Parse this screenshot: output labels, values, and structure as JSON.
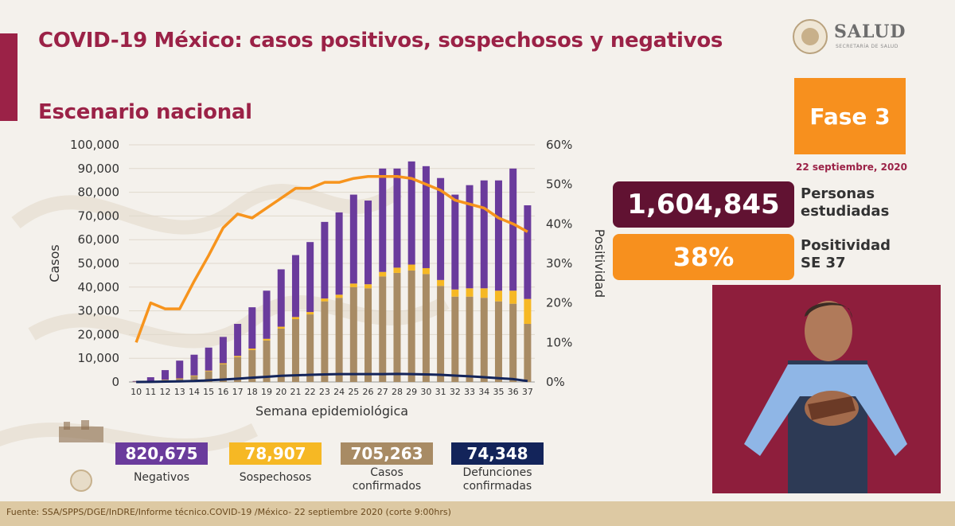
{
  "header": {
    "title": "COVID-19 México: casos positivos, sospechosos y negativos",
    "subtitle": "Escenario nacional"
  },
  "logo": {
    "name": "SALUD",
    "sub": "SECRETARÍA DE SALUD"
  },
  "phase": {
    "label": "Fase 3",
    "date": "22 septiembre, 2020"
  },
  "stats": {
    "personas_value": "1,604,845",
    "personas_label_1": "Personas",
    "personas_label_2": "estudiadas",
    "positividad_value": "38%",
    "positividad_label_1": "Positividad",
    "positividad_label_2": "SE 37"
  },
  "totals": [
    {
      "value": "820,675",
      "label_1": "Negativos",
      "label_2": "",
      "color": "#6a3b9c"
    },
    {
      "value": "78,907",
      "label_1": "Sospechosos",
      "label_2": "",
      "color": "#f6b824"
    },
    {
      "value": "705,263",
      "label_1": "Casos",
      "label_2": "confirmados",
      "color": "#a88b64"
    },
    {
      "value": "74,348",
      "label_1": "Defunciones",
      "label_2": "confirmadas",
      "color": "#13245a"
    }
  ],
  "footer": {
    "source": "Fuente: SSA/SPPS/DGE/InDRE/Informe técnico.COVID-19 /México- 22 septiembre 2020 (corte 9:00hrs)"
  },
  "colors": {
    "negativos": "#6a3b9c",
    "sospechosos": "#f6b824",
    "confirmados": "#a88b64",
    "defunciones": "#13245a",
    "positividad": "#f7941d",
    "accent": "#9b2247"
  },
  "chart_data": {
    "type": "bar",
    "stacked": true,
    "xlabel": "Semana epidemiológica",
    "ylabel": "Casos",
    "y2label": "Positividad",
    "ylim": [
      0,
      100000
    ],
    "y2lim": [
      0,
      60
    ],
    "yticks": [
      "0",
      "10,000",
      "20,000",
      "30,000",
      "40,000",
      "50,000",
      "60,000",
      "70,000",
      "80,000",
      "90,000",
      "100,000"
    ],
    "y2ticks": [
      "0%",
      "10%",
      "20%",
      "30%",
      "40%",
      "50%",
      "60%"
    ],
    "categories": [
      "10",
      "11",
      "12",
      "13",
      "14",
      "15",
      "16",
      "17",
      "18",
      "19",
      "20",
      "21",
      "22",
      "23",
      "24",
      "25",
      "26",
      "27",
      "28",
      "29",
      "30",
      "31",
      "32",
      "33",
      "34",
      "35",
      "36",
      "37"
    ],
    "series": [
      {
        "name": "Casos confirmados",
        "values": [
          100,
          300,
          800,
          1300,
          2500,
          4500,
          7500,
          10500,
          13500,
          17500,
          22500,
          26500,
          28500,
          34000,
          35500,
          40000,
          39500,
          44500,
          46000,
          47000,
          45500,
          40500,
          36000,
          36000,
          35500,
          34000,
          33000,
          24500
        ]
      },
      {
        "name": "Sospechosos",
        "values": [
          50,
          100,
          150,
          200,
          250,
          300,
          400,
          500,
          600,
          700,
          800,
          900,
          1000,
          1200,
          1300,
          1500,
          1700,
          1900,
          2200,
          2500,
          2500,
          2500,
          3000,
          3500,
          4000,
          4500,
          5500,
          10500
        ]
      },
      {
        "name": "Negativos",
        "values": [
          250,
          1600,
          4050,
          7500,
          8750,
          9700,
          11100,
          13500,
          17400,
          20300,
          24200,
          26100,
          29500,
          32300,
          34700,
          37500,
          35300,
          43600,
          41800,
          43500,
          43000,
          43000,
          40000,
          43500,
          45500,
          46500,
          51500,
          39500
        ]
      },
      {
        "name": "Defunciones",
        "type": "line",
        "values": [
          20,
          60,
          150,
          250,
          400,
          700,
          1000,
          1400,
          1800,
          2200,
          2600,
          2800,
          3000,
          3200,
          3300,
          3300,
          3300,
          3300,
          3400,
          3300,
          3200,
          3000,
          2700,
          2400,
          2000,
          1600,
          1200,
          400
        ]
      },
      {
        "name": "Positividad",
        "type": "line",
        "axis": "right",
        "values": [
          10,
          20,
          18.5,
          18.5,
          25.5,
          32,
          39,
          42.5,
          41.5,
          44,
          46.5,
          49,
          49,
          50.5,
          50.5,
          51.5,
          52,
          52,
          52,
          51.5,
          50,
          48.5,
          46,
          45,
          44,
          41.5,
          40,
          38
        ]
      }
    ]
  }
}
